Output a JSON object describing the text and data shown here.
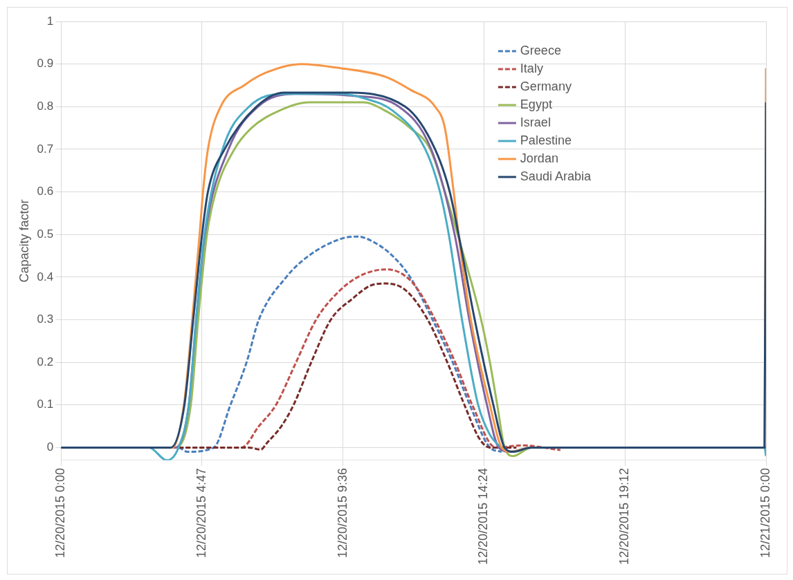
{
  "chart_data": {
    "type": "line",
    "ylabel": "Capacity factor",
    "xlim": [
      "2015-12-20T00:00",
      "2015-12-21T00:00"
    ],
    "ylim": [
      -0.03,
      1
    ],
    "xticks": [
      {
        "value": "2015-12-20T00:00",
        "label": "12/20/2015 0:00"
      },
      {
        "value": "2015-12-20T04:48",
        "label": "12/20/2015 4:47"
      },
      {
        "value": "2015-12-20T09:36",
        "label": "12/20/2015 9:36"
      },
      {
        "value": "2015-12-20T14:24",
        "label": "12/20/2015 14:24"
      },
      {
        "value": "2015-12-20T19:12",
        "label": "12/20/2015 19:12"
      },
      {
        "value": "2015-12-21T00:00",
        "label": "12/21/2015 0:00"
      }
    ],
    "yticks": [
      0,
      0.1,
      0.2,
      0.3,
      0.4,
      0.5,
      0.6,
      0.7,
      0.8,
      0.9,
      1
    ],
    "grid": true,
    "legend": "top right",
    "marker": "none",
    "series": [
      {
        "name": "Greece",
        "color": "#4a7ebb",
        "line_style": "dashed",
        "x": [
          "2015-12-20T00:00",
          "2015-12-20T04:00",
          "2015-12-20T04:18",
          "2015-12-20T05:12",
          "2015-12-20T05:46",
          "2015-12-20T06:19",
          "2015-12-20T06:44",
          "2015-12-20T07:40",
          "2015-12-20T08:26",
          "2015-12-20T09:32",
          "2015-12-20T10:06",
          "2015-12-20T10:42",
          "2015-12-20T11:17",
          "2015-12-20T11:53",
          "2015-12-20T12:39",
          "2015-12-20T13:20",
          "2015-12-20T13:55",
          "2015-12-20T14:36",
          "2015-12-20T15:00"
        ],
        "values": [
          0,
          0,
          -0.01,
          0,
          0.1,
          0.2,
          0.3,
          0.4,
          0.45,
          0.49,
          0.495,
          0.48,
          0.45,
          0.4,
          0.3,
          0.2,
          0.1,
          0,
          -0.01
        ]
      },
      {
        "name": "Italy",
        "color": "#c0504d",
        "line_style": "dashed",
        "x": [
          "2015-12-20T00:00",
          "2015-12-20T06:09",
          "2015-12-20T06:44",
          "2015-12-20T07:19",
          "2015-12-20T08:00",
          "2015-12-20T08:41",
          "2015-12-20T09:22",
          "2015-12-20T10:06",
          "2015-12-20T11:03",
          "2015-12-20T11:33",
          "2015-12-20T12:03",
          "2015-12-20T12:44",
          "2015-12-20T13:25",
          "2015-12-20T14:00",
          "2015-12-20T14:48",
          "2015-12-20T15:42",
          "2015-12-20T17:00"
        ],
        "values": [
          0,
          0,
          0.05,
          0.1,
          0.2,
          0.3,
          0.36,
          0.4,
          0.418,
          0.41,
          0.38,
          0.3,
          0.2,
          0.1,
          0,
          0.005,
          -0.006
        ]
      },
      {
        "name": "Germany",
        "color": "#772c2a",
        "line_style": "dashed",
        "x": [
          "2015-12-20T00:00",
          "2015-12-20T06:24",
          "2015-12-20T06:48",
          "2015-12-20T07:00",
          "2015-12-20T07:30",
          "2015-12-20T07:55",
          "2015-12-20T08:31",
          "2015-12-20T09:11",
          "2015-12-20T09:56",
          "2015-12-20T10:32",
          "2015-12-20T11:03",
          "2015-12-20T11:43",
          "2015-12-20T12:29",
          "2015-12-20T13:09",
          "2015-12-20T13:44",
          "2015-12-20T14:15",
          "2015-12-20T14:36",
          "2015-12-20T15:30"
        ],
        "values": [
          0,
          0,
          -0.005,
          0.01,
          0.05,
          0.1,
          0.2,
          0.3,
          0.35,
          0.38,
          0.385,
          0.37,
          0.3,
          0.2,
          0.1,
          0.02,
          0,
          0
        ]
      },
      {
        "name": "Egypt",
        "color": "#9bbb59",
        "x": [
          "2015-12-20T00:00",
          "2015-12-20T03:54",
          "2015-12-20T04:25",
          "2015-12-20T04:40",
          "2015-12-20T04:58",
          "2015-12-20T05:16",
          "2015-12-20T05:54",
          "2015-12-20T06:29",
          "2015-12-20T07:25",
          "2015-12-20T08:26",
          "2015-12-20T10:17",
          "2015-12-20T11:03",
          "2015-12-20T11:53",
          "2015-12-20T12:34",
          "2015-12-20T13:04",
          "2015-12-20T13:30",
          "2015-12-20T14:18",
          "2015-12-20T14:36",
          "2015-12-20T14:51",
          "2015-12-20T15:06",
          "2015-12-20T15:24",
          "2015-12-20T16:00",
          "2015-12-21T00:00"
        ],
        "values": [
          0,
          0,
          0.1,
          0.3,
          0.5,
          0.6,
          0.7,
          0.75,
          0.79,
          0.81,
          0.81,
          0.79,
          0.75,
          0.7,
          0.6,
          0.5,
          0.3,
          0.2,
          0.1,
          0,
          -0.02,
          0,
          0
        ]
      },
      {
        "name": "Israel",
        "color": "#8064a2",
        "x": [
          "2015-12-20T00:00",
          "2015-12-20T03:54",
          "2015-12-20T04:21",
          "2015-12-20T04:36",
          "2015-12-20T04:54",
          "2015-12-20T05:42",
          "2015-12-20T06:42",
          "2015-12-20T08:00",
          "2015-12-20T10:00",
          "2015-12-20T11:30",
          "2015-12-20T12:36",
          "2015-12-20T13:24",
          "2015-12-20T13:54",
          "2015-12-20T14:30",
          "2015-12-20T14:54",
          "2015-12-20T15:18",
          "2015-12-20T16:00",
          "2015-12-21T00:00"
        ],
        "values": [
          0,
          0,
          0.1,
          0.3,
          0.5,
          0.7,
          0.8,
          0.83,
          0.825,
          0.8,
          0.7,
          0.5,
          0.3,
          0.1,
          0,
          -0.01,
          0,
          0
        ]
      },
      {
        "name": "Palestine",
        "color": "#4bacc6",
        "x": [
          "2015-12-20T00:00",
          "2015-12-20T03:00",
          "2015-12-20T03:36",
          "2015-12-20T04:00",
          "2015-12-20T04:21",
          "2015-12-20T04:36",
          "2015-12-20T04:53",
          "2015-12-20T05:30",
          "2015-12-20T06:24",
          "2015-12-20T07:36",
          "2015-12-20T09:30",
          "2015-12-20T10:18",
          "2015-12-20T11:18",
          "2015-12-20T12:24",
          "2015-12-20T12:54",
          "2015-12-20T13:12",
          "2015-12-20T13:39",
          "2015-12-20T14:12",
          "2015-12-20T14:36",
          "2015-12-20T15:00",
          "2015-12-20T15:18",
          "2015-12-20T16:00",
          "2015-12-20T23:57",
          "2015-12-21T00:00"
        ],
        "values": [
          0,
          0,
          -0.03,
          0,
          0.1,
          0.3,
          0.5,
          0.7,
          0.8,
          0.83,
          0.83,
          0.82,
          0.79,
          0.7,
          0.6,
          0.5,
          0.3,
          0.1,
          0.03,
          0,
          -0.01,
          0,
          0,
          -0.02
        ]
      },
      {
        "name": "Jordan",
        "color": "#f79646",
        "x": [
          "2015-12-20T00:00",
          "2015-12-20T03:48",
          "2015-12-20T04:11",
          "2015-12-20T04:28",
          "2015-12-20T04:43",
          "2015-12-20T04:50",
          "2015-12-20T05:00",
          "2015-12-20T05:26",
          "2015-12-20T06:14",
          "2015-12-20T06:59",
          "2015-12-20T08:11",
          "2015-12-20T09:32",
          "2015-12-20T11:03",
          "2015-12-20T11:53",
          "2015-12-20T12:44",
          "2015-12-20T13:04",
          "2015-12-20T13:22",
          "2015-12-20T13:32",
          "2015-12-20T13:57",
          "2015-12-20T14:36",
          "2015-12-20T15:00",
          "2015-12-20T15:18",
          "2015-12-20T16:00",
          "2015-12-20T23:57",
          "2015-12-21T00:00"
        ],
        "values": [
          0,
          0,
          0.1,
          0.3,
          0.5,
          0.6,
          0.7,
          0.8,
          0.85,
          0.88,
          0.9,
          0.89,
          0.87,
          0.84,
          0.8,
          0.75,
          0.6,
          0.5,
          0.3,
          0.1,
          0,
          -0.01,
          0,
          0,
          0.89
        ]
      },
      {
        "name": "Saudi Arabia",
        "color": "#27486f",
        "x": [
          "2015-12-20T00:00",
          "2015-12-20T03:44",
          "2015-12-20T04:12",
          "2015-12-20T04:30",
          "2015-12-20T04:48",
          "2015-12-20T05:00",
          "2015-12-20T05:34",
          "2015-12-20T06:39",
          "2015-12-20T07:36",
          "2015-12-20T09:36",
          "2015-12-20T11:43",
          "2015-12-20T12:44",
          "2015-12-20T13:14",
          "2015-12-20T13:32",
          "2015-12-20T14:05",
          "2015-12-20T14:43",
          "2015-12-20T15:06",
          "2015-12-20T15:24",
          "2015-12-20T16:00",
          "2015-12-20T23:57",
          "2015-12-21T00:00"
        ],
        "values": [
          0,
          0,
          0.1,
          0.3,
          0.5,
          0.6,
          0.7,
          0.8,
          0.833,
          0.833,
          0.8,
          0.7,
          0.6,
          0.5,
          0.3,
          0.1,
          0,
          -0.01,
          0,
          0,
          0.81
        ]
      }
    ]
  }
}
